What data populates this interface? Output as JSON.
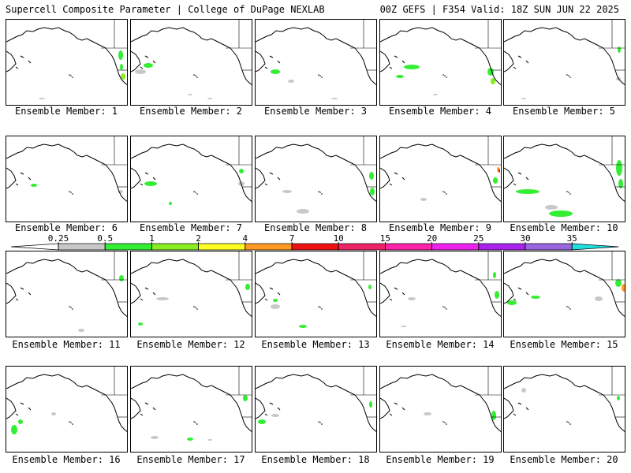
{
  "header": {
    "title": "Supercell Composite Parameter | College of DuPage NEXLAB",
    "valid": "00Z GEFS | F354 Valid: 18Z SUN JUN 22 2025"
  },
  "members": [
    "Ensemble Member: 1",
    "Ensemble Member: 2",
    "Ensemble Member: 3",
    "Ensemble Member: 4",
    "Ensemble Member: 5",
    "Ensemble Member: 6",
    "Ensemble Member: 7",
    "Ensemble Member: 8",
    "Ensemble Member: 9",
    "Ensemble Member: 10",
    "Ensemble Member: 11",
    "Ensemble Member: 12",
    "Ensemble Member: 13",
    "Ensemble Member: 14",
    "Ensemble Member: 15",
    "Ensemble Member: 16",
    "Ensemble Member: 17",
    "Ensemble Member: 18",
    "Ensemble Member: 19",
    "Ensemble Member: 20"
  ],
  "colorbar": {
    "labels": [
      "0.25",
      "0.5",
      "1",
      "2",
      "4",
      "7",
      "10",
      "15",
      "20",
      "25",
      "30",
      "35"
    ],
    "colors": [
      "#c8c8c8",
      "#33ee33",
      "#88ee22",
      "#ffff22",
      "#ff9922",
      "#ee1111",
      "#ee2266",
      "#ff22aa",
      "#ee22ee",
      "#aa22ee",
      "#9966dd",
      "#22dddd"
    ]
  },
  "map_colors": {
    "gray": "#c8c8c8",
    "green": "#33ee33",
    "lime": "#88ee22",
    "yellow": "#ffff22",
    "orange": "#ff9922",
    "red": "#ee1111"
  }
}
